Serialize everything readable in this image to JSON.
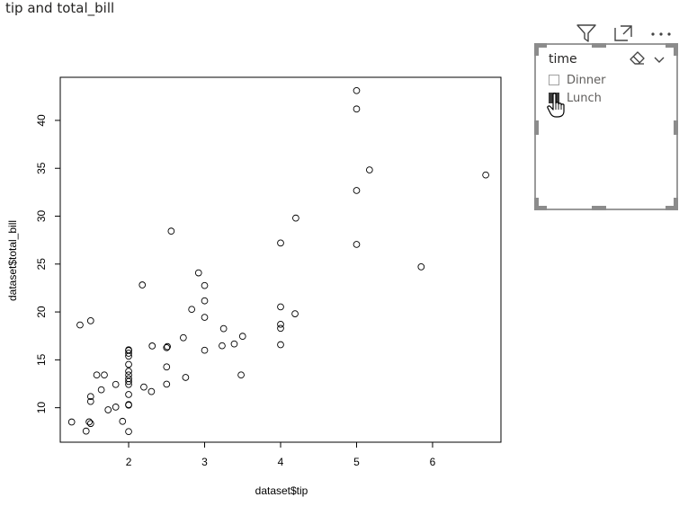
{
  "visual": {
    "title": "tip and total_bill"
  },
  "header_icons": [
    {
      "name": "filter-icon"
    },
    {
      "name": "focus-mode-icon"
    },
    {
      "name": "more-options-icon"
    }
  ],
  "slicer": {
    "title": "time",
    "items": [
      {
        "label": "Dinner",
        "checked": false
      },
      {
        "label": "Lunch",
        "checked": true
      }
    ]
  },
  "chart_data": {
    "type": "scatter",
    "title": "",
    "xlabel": "dataset$tip",
    "ylabel": "dataset$total_bill",
    "xlim": [
      1.1,
      6.9
    ],
    "ylim": [
      6.4,
      44.5
    ],
    "x_ticks": [
      "2",
      "3",
      "4",
      "5",
      "6"
    ],
    "y_ticks": [
      "10",
      "15",
      "20",
      "25",
      "30",
      "35",
      "40"
    ],
    "grid": false,
    "points": [
      [
        1.25,
        8.51
      ],
      [
        1.36,
        18.64
      ],
      [
        1.44,
        7.56
      ],
      [
        1.48,
        8.52
      ],
      [
        1.5,
        8.35
      ],
      [
        1.5,
        19.08
      ],
      [
        1.5,
        11.17
      ],
      [
        1.5,
        10.65
      ],
      [
        1.58,
        13.42
      ],
      [
        1.64,
        11.87
      ],
      [
        1.68,
        13.42
      ],
      [
        1.73,
        9.78
      ],
      [
        1.83,
        12.43
      ],
      [
        1.83,
        10.07
      ],
      [
        1.92,
        8.58
      ],
      [
        2.0,
        7.51
      ],
      [
        2.0,
        10.27
      ],
      [
        2.0,
        10.33
      ],
      [
        2.0,
        11.38
      ],
      [
        2.0,
        12.43
      ],
      [
        2.0,
        12.74
      ],
      [
        2.0,
        13.03
      ],
      [
        2.0,
        13.42
      ],
      [
        2.0,
        13.81
      ],
      [
        2.0,
        14.52
      ],
      [
        2.0,
        15.38
      ],
      [
        2.0,
        15.69
      ],
      [
        2.0,
        15.98
      ],
      [
        2.0,
        16.04
      ],
      [
        2.2,
        12.16
      ],
      [
        2.18,
        22.82
      ],
      [
        2.3,
        11.69
      ],
      [
        2.31,
        16.45
      ],
      [
        2.5,
        12.46
      ],
      [
        2.5,
        14.26
      ],
      [
        2.5,
        16.27
      ],
      [
        2.51,
        16.38
      ],
      [
        2.56,
        28.44
      ],
      [
        2.72,
        17.31
      ],
      [
        2.75,
        13.16
      ],
      [
        2.83,
        20.27
      ],
      [
        2.92,
        24.08
      ],
      [
        3.0,
        16.0
      ],
      [
        3.0,
        19.44
      ],
      [
        3.0,
        21.16
      ],
      [
        3.0,
        22.76
      ],
      [
        3.23,
        16.47
      ],
      [
        3.25,
        18.26
      ],
      [
        3.39,
        16.66
      ],
      [
        3.48,
        13.42
      ],
      [
        3.5,
        17.46
      ],
      [
        4.0,
        16.58
      ],
      [
        4.0,
        18.29
      ],
      [
        4.0,
        18.71
      ],
      [
        4.0,
        20.53
      ],
      [
        4.0,
        27.2
      ],
      [
        4.19,
        19.81
      ],
      [
        4.2,
        29.8
      ],
      [
        5.0,
        27.05
      ],
      [
        5.0,
        32.68
      ],
      [
        5.0,
        41.19
      ],
      [
        5.0,
        43.11
      ],
      [
        5.17,
        34.83
      ],
      [
        5.85,
        24.71
      ],
      [
        6.7,
        34.3
      ]
    ]
  }
}
